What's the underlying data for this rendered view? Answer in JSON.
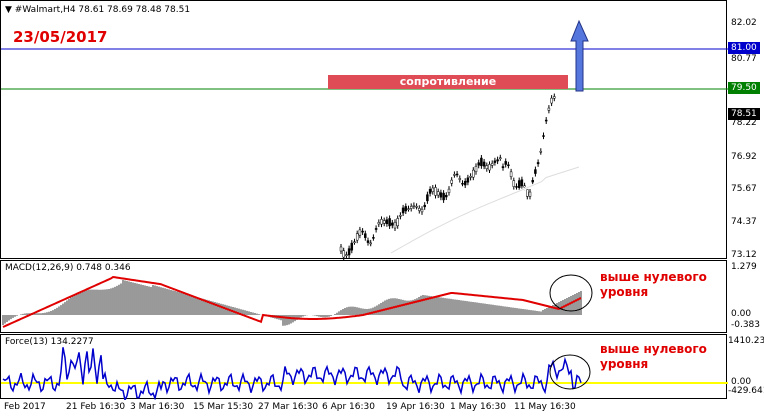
{
  "chart": {
    "symbol_header": "#Walmart,H4  78.61 78.69 78.48 78.51",
    "date_title": "23/05/2017",
    "resistance_label": "сопротивление",
    "price_axis": [
      "82.02",
      "80.77",
      "78.22",
      "76.92",
      "75.67",
      "74.37",
      "73.12"
    ],
    "tag_resistance_high": "81.00",
    "tag_resistance_low": "79.50",
    "tag_last_price": "78.51",
    "macd_header": "MACD(12,26,9) 0.748 0.346",
    "macd_axis": [
      "1.279",
      "0.00",
      "-0.383"
    ],
    "macd_note": "выше нулевого уровня",
    "force_header": "Force(13) 134.2277",
    "force_axis": [
      "1410.230",
      "0.00",
      "-429.641"
    ],
    "force_note": "выше нулевого уровня",
    "time_axis": [
      "Feb 2017",
      "21 Feb 16:30",
      "3 Mar 16:30",
      "15 Mar 15:30",
      "27 Mar 16:30",
      "6 Apr 16:30",
      "19 Apr 16:30",
      "1 May 16:30",
      "11 May 16:30"
    ]
  },
  "colors": {
    "resistance_high_line": "#0000cc",
    "resistance_low_line": "#008000",
    "resistance_box": "#e04c55",
    "arrow": "#5577dd",
    "signal_line": "#e00000",
    "force_line": "#0000cc",
    "zero_line": "#ffff00",
    "annotation": "#e00000"
  }
}
